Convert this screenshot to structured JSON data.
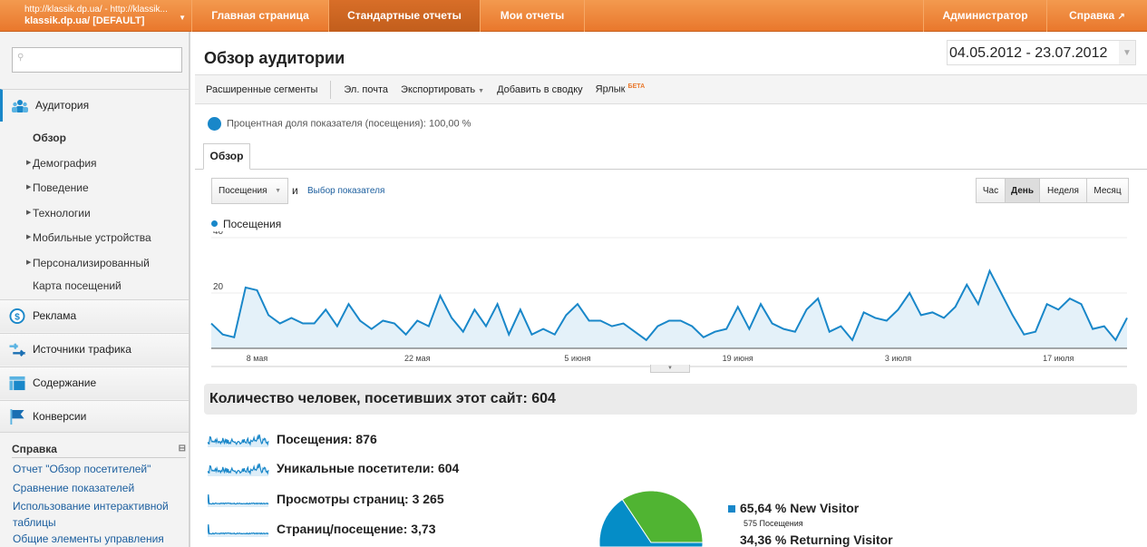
{
  "header": {
    "site_url": "http://klassik.dp.ua/ - http://klassik...",
    "site_profile": "klassik.dp.ua/ [DEFAULT]",
    "tabs": [
      "Главная страница",
      "Стандартные отчеты",
      "Мои отчеты"
    ],
    "admin": "Администратор",
    "help": "Справка"
  },
  "sidebar": {
    "search_placeholder": "",
    "audience": "Аудитория",
    "sub": [
      "Обзор",
      "Демография",
      "Поведение",
      "Технологии",
      "Мобильные устройства",
      "Персонализированный",
      "Карта посещений"
    ],
    "sections": [
      "Реклама",
      "Источники трафика",
      "Содержание",
      "Конверсии"
    ],
    "help_title": "Справка",
    "help_links": [
      "Отчет \"Обзор посетителей\"",
      "Сравнение показателей",
      "Использование интерактивной таблицы",
      "Общие элементы управления"
    ]
  },
  "main": {
    "title": "Обзор аудитории",
    "date_range": "04.05.2012 - 23.07.2012",
    "toolbar": {
      "segments": "Расширенные сегменты",
      "email": "Эл. почта",
      "export": "Экспортировать",
      "add": "Добавить в сводку",
      "shortcut": "Ярлык",
      "beta": "БЕТА"
    },
    "percent": "Процентная доля показателя (посещения): 100,00 %",
    "tab": "Обзор",
    "metric": "Посещения",
    "and": "и",
    "choose_metric": "Выбор показателя",
    "periods": [
      "Час",
      "День",
      "Неделя",
      "Месяц"
    ],
    "summary": "Количество человек, посетивших этот сайт: 604",
    "metrics": [
      "Посещения: 876",
      "Уникальные посетители: 604",
      "Просмотры страниц: 3 265",
      "Страниц/посещение: 3,73"
    ],
    "pie_legend": [
      {
        "pct": "65,64 % New Visitor",
        "sub": "575 Посещения"
      },
      {
        "pct": "34,36 % Returning Visitor"
      }
    ]
  },
  "colors": {
    "orange": "#e9782c",
    "line": "#1987c9",
    "green": "#50b432"
  },
  "chart_data": {
    "type": "area",
    "series": [
      {
        "name": "Посещения",
        "values": [
          9,
          5,
          4,
          22,
          21,
          12,
          9,
          11,
          9,
          9,
          14,
          8,
          16,
          10,
          7,
          10,
          9,
          5,
          10,
          8,
          19,
          11,
          6,
          14,
          8,
          16,
          5,
          14,
          5,
          7,
          5,
          12,
          16,
          10,
          10,
          8,
          9,
          6,
          3,
          8,
          10,
          10,
          8,
          4,
          6,
          7,
          15,
          7,
          16,
          9,
          7,
          6,
          14,
          18,
          6,
          8,
          3,
          13,
          11,
          10,
          14,
          20,
          12,
          13,
          11,
          15,
          23,
          16,
          28,
          20,
          12,
          5,
          6,
          16,
          14,
          18,
          16,
          7,
          8,
          3,
          11
        ]
      }
    ],
    "x_start": "04.05.2012",
    "x_end": "23.07.2012",
    "xticks": [
      "8 мая",
      "22 мая",
      "5 июня",
      "19 июня",
      "3 июля",
      "17 июля"
    ],
    "xtick_index": [
      4,
      18,
      32,
      46,
      60,
      74
    ],
    "yticks": [
      "20",
      "40"
    ],
    "ylim": [
      0,
      40
    ],
    "pie": {
      "type": "pie",
      "labels": [
        "New Visitor",
        "Returning Visitor"
      ],
      "values": [
        65.64,
        34.36
      ]
    }
  }
}
